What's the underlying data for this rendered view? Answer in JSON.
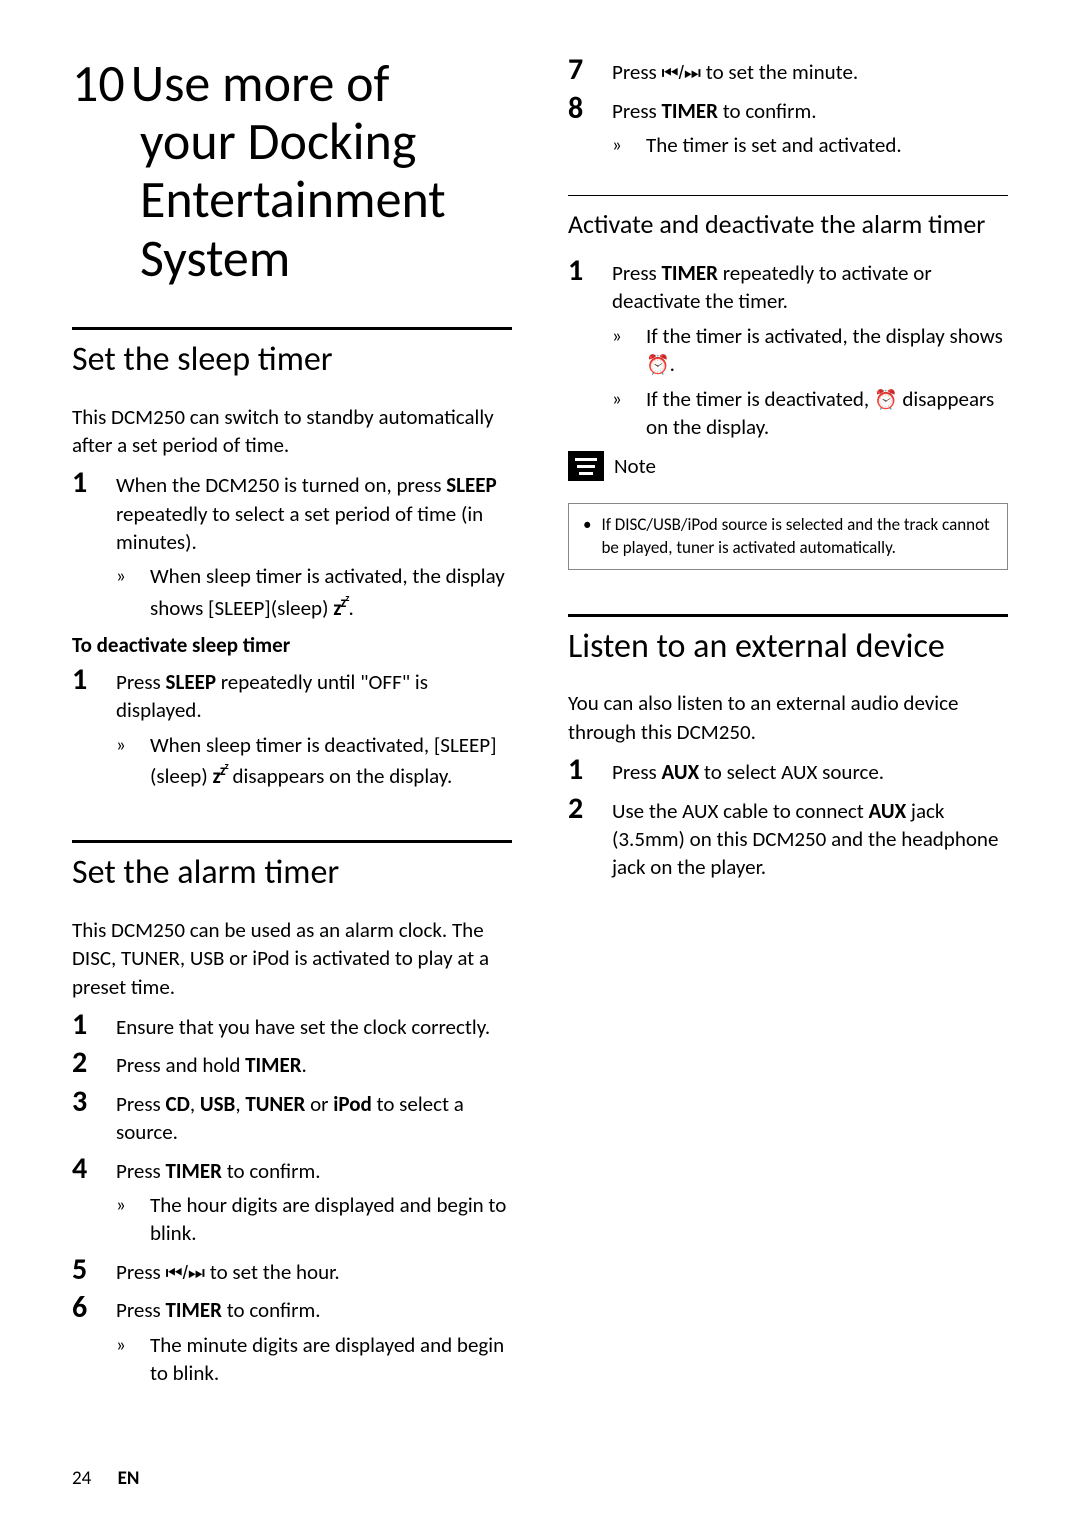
{
  "colors": {
    "text": "#000000",
    "bg": "#ffffff",
    "rule": "#000000",
    "note_border": "#888888"
  },
  "typography": {
    "body_pt": 21,
    "h1_pt": 52,
    "h2_pt": 34,
    "h3_pt": 26,
    "step_num_pt": 30,
    "note_pt": 17,
    "footer_pt": 19
  },
  "h1_num": "10",
  "h1_l1": "Use more of",
  "h1_l2": "your Docking",
  "h1_l3": "Entertainment",
  "h1_l4": "System",
  "s1": {
    "title": "Set the sleep timer",
    "intro": "This DCM250 can switch to standby automatically after a set period of time.",
    "step1_a": "When the DCM250 is turned on, press ",
    "step1_b": "SLEEP",
    "step1_c": " repeatedly to select a set period of time (in minutes).",
    "res1_a": "When sleep timer is activated, the display shows [SLEEP](sleep) ",
    "res1_b": ".",
    "sub": "To deactivate sleep timer",
    "step2_a": "Press ",
    "step2_b": "SLEEP",
    "step2_c": " repeatedly until \"OFF\" is displayed.",
    "res2_a": "When sleep timer is deactivated, [SLEEP](sleep) ",
    "res2_b": " disappears on the display."
  },
  "s2": {
    "title": "Set the alarm timer",
    "intro": "This DCM250 can be used as an alarm clock. The DISC, TUNER, USB or iPod is activated to play at a preset time.",
    "st1": "Ensure that you have set the clock correctly.",
    "st2_a": "Press and hold ",
    "st2_b": "TIMER",
    "st2_c": ".",
    "st3_a": "Press ",
    "st3_b": "CD",
    "st3_c": ", ",
    "st3_d": "USB",
    "st3_e": ", ",
    "st3_f": "TUNER",
    "st3_g": " or ",
    "st3_h": "iPod",
    "st3_i": " to select a source.",
    "st4_a": "Press ",
    "st4_b": "TIMER",
    "st4_c": " to confirm.",
    "st4_r": "The hour digits are displayed and begin to blink.",
    "st5_a": "Press ",
    "st5_b": " to set the hour.",
    "st6_a": "Press ",
    "st6_b": "TIMER",
    "st6_c": " to confirm.",
    "st6_r": "The minute digits are displayed and begin to blink.",
    "st7_a": "Press ",
    "st7_b": " to set the minute.",
    "st8_a": "Press ",
    "st8_b": "TIMER",
    "st8_c": " to confirm.",
    "st8_r": "The timer is set and activated."
  },
  "s3": {
    "title": "Activate and deactivate the alarm timer",
    "st1_a": "Press ",
    "st1_b": "TIMER",
    "st1_c": " repeatedly to activate or deactivate the timer.",
    "r1_a": "If the timer is activated, the display shows ",
    "r1_b": ".",
    "r2_a": "If the timer is deactivated, ",
    "r2_b": " disappears on the display."
  },
  "note": {
    "label": "Note",
    "text": "If DISC/USB/iPod source is selected and the track cannot be played, tuner is activated automatically."
  },
  "s4": {
    "title": "Listen to an external device",
    "intro": "You can also listen to an external audio device through this DCM250.",
    "st1_a": "Press ",
    "st1_b": "AUX",
    "st1_c": " to select AUX source.",
    "st2_a": "Use the AUX cable to connect ",
    "st2_b": "AUX",
    "st2_c": " jack (3.5mm) on this DCM250 and the headphone jack on the player."
  },
  "nums": {
    "n1": "1",
    "n2": "2",
    "n3": "3",
    "n4": "4",
    "n5": "5",
    "n6": "6",
    "n7": "7",
    "n8": "8"
  },
  "arrow": "»",
  "bullet": "•",
  "skip_glyph": "⏮/⏭",
  "clock_glyph": "⏰",
  "sleep_glyph_html": "z<sup>z<sup>z</sup></sup>",
  "footer": {
    "page": "24",
    "lang": "EN"
  }
}
